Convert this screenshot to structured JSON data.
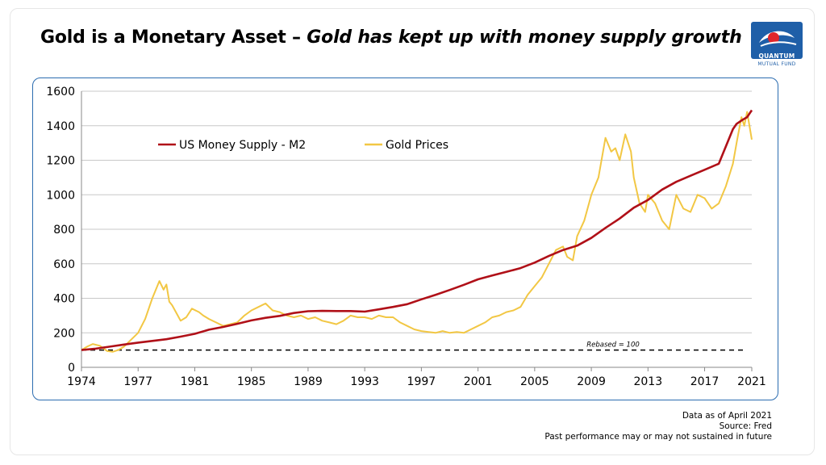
{
  "header": {
    "title_main": "Gold is a Monetary Asset – ",
    "title_italic": "Gold has kept up with money supply growth"
  },
  "logo": {
    "brand": "QUANTUM",
    "sub": "MUTUAL FUND",
    "colors": {
      "box": "#1f5fa8",
      "swoosh_red": "#e0262b",
      "swoosh_white": "#ffffff"
    }
  },
  "footnote": {
    "line1": "Data as of April 2021",
    "line2": "Source: Fred",
    "line3": "Past performance may or may not sustained in future"
  },
  "chart_data": {
    "type": "line",
    "title": "",
    "xlabel": "",
    "ylabel": "",
    "xlim": [
      1974,
      2021.33
    ],
    "ylim": [
      0,
      1600
    ],
    "x_ticks": [
      "1974",
      "1977",
      "1981",
      "1985",
      "1989",
      "1993",
      "1997",
      "2001",
      "2005",
      "2009",
      "2013",
      "2017",
      "2021"
    ],
    "x_tick_values": [
      1974,
      1978,
      1982,
      1986,
      1990,
      1994,
      1998,
      2002,
      2006,
      2010,
      2014,
      2018,
      2021.33
    ],
    "y_ticks": [
      0,
      200,
      400,
      600,
      800,
      1000,
      1200,
      1400,
      1600
    ],
    "grid": "horizontal",
    "legend_position": "top-left",
    "reference_line": {
      "value": 100,
      "label": "Rebased = 100",
      "style": "dashed",
      "color": "#000000"
    },
    "series": [
      {
        "name": "US Money Supply - M2",
        "color": "#b01018",
        "x": [
          1974,
          1975,
          1976,
          1977,
          1978,
          1979,
          1980,
          1981,
          1982,
          1983,
          1984,
          1985,
          1986,
          1987,
          1988,
          1989,
          1990,
          1991,
          1992,
          1993,
          1994,
          1995,
          1996,
          1997,
          1998,
          1999,
          2000,
          2001,
          2002,
          2003,
          2004,
          2005,
          2006,
          2007,
          2008,
          2009,
          2010,
          2011,
          2012,
          2013,
          2014,
          2015,
          2016,
          2017,
          2018,
          2019,
          2020,
          2020.25,
          2020.6,
          2021,
          2021.33
        ],
        "values": [
          100,
          108,
          120,
          132,
          143,
          153,
          163,
          178,
          194,
          218,
          234,
          252,
          272,
          287,
          298,
          315,
          325,
          327,
          326,
          326,
          323,
          336,
          350,
          366,
          394,
          420,
          448,
          478,
          510,
          532,
          553,
          575,
          607,
          645,
          680,
          705,
          750,
          808,
          862,
          925,
          970,
          1030,
          1075,
          1110,
          1145,
          1180,
          1380,
          1410,
          1430,
          1450,
          1490
        ]
      },
      {
        "name": "Gold Prices",
        "color": "#f2c744",
        "x": [
          1974,
          1974.4,
          1974.8,
          1975.3,
          1975.8,
          1976.2,
          1976.6,
          1977,
          1977.5,
          1978,
          1978.5,
          1979,
          1979.5,
          1979.8,
          1980,
          1980.2,
          1980.4,
          1980.6,
          1980.8,
          1981,
          1981.4,
          1981.8,
          1982.3,
          1982.6,
          1983,
          1983.5,
          1984,
          1984.5,
          1985,
          1985.5,
          1986,
          1986.5,
          1987,
          1987.5,
          1988,
          1988.5,
          1989,
          1989.5,
          1990,
          1990.5,
          1991,
          1991.5,
          1992,
          1992.5,
          1993,
          1993.5,
          1994,
          1994.5,
          1995,
          1995.5,
          1996,
          1996.5,
          1997,
          1997.5,
          1998,
          1998.5,
          1999,
          1999.5,
          2000,
          2000.5,
          2001,
          2001.5,
          2002,
          2002.5,
          2003,
          2003.5,
          2004,
          2004.5,
          2005,
          2005.5,
          2006,
          2006.5,
          2007,
          2007.5,
          2008,
          2008.3,
          2008.7,
          2009,
          2009.5,
          2010,
          2010.5,
          2011,
          2011.4,
          2011.7,
          2012,
          2012.4,
          2012.8,
          2013,
          2013.4,
          2013.8,
          2014,
          2014.5,
          2015,
          2015.5,
          2016,
          2016.5,
          2017,
          2017.5,
          2018,
          2018.5,
          2019,
          2019.5,
          2020,
          2020.3,
          2020.6,
          2020.8,
          2021,
          2021.33
        ],
        "values": [
          100,
          120,
          135,
          125,
          95,
          90,
          100,
          120,
          160,
          200,
          280,
          400,
          500,
          450,
          480,
          380,
          360,
          330,
          300,
          270,
          290,
          340,
          320,
          300,
          280,
          260,
          240,
          250,
          260,
          300,
          330,
          350,
          370,
          330,
          320,
          300,
          290,
          300,
          280,
          290,
          270,
          260,
          250,
          270,
          300,
          290,
          290,
          280,
          300,
          290,
          290,
          260,
          240,
          220,
          210,
          205,
          200,
          210,
          200,
          205,
          200,
          220,
          240,
          260,
          290,
          300,
          320,
          330,
          350,
          420,
          470,
          520,
          600,
          680,
          700,
          640,
          620,
          760,
          850,
          1000,
          1100,
          1330,
          1250,
          1270,
          1200,
          1350,
          1250,
          1100,
          950,
          900,
          1000,
          950,
          850,
          800,
          1000,
          920,
          900,
          1000,
          980,
          920,
          950,
          1050,
          1180,
          1320,
          1450,
          1400,
          1480,
          1320
        ]
      }
    ]
  }
}
